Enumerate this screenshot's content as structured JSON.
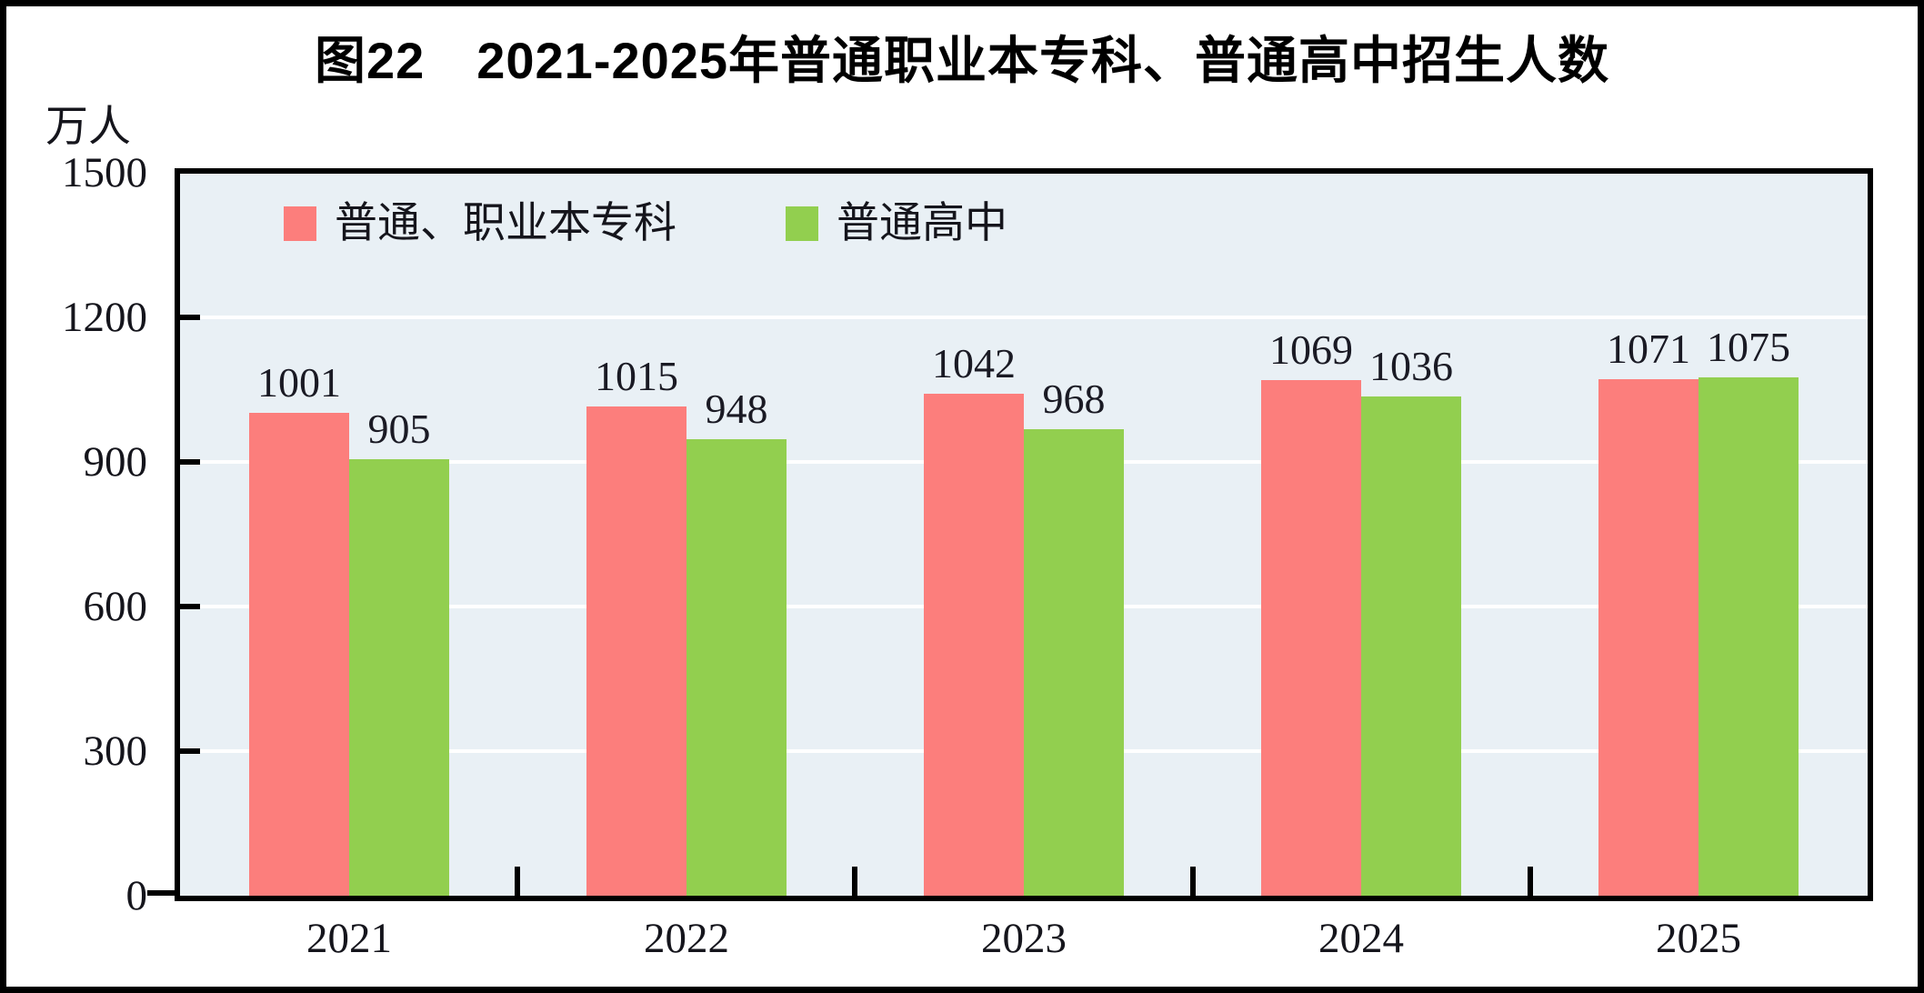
{
  "figure": {
    "title": "图22　2021-2025年普通职业本专科、普通高中招生人数",
    "unit_label": "万人"
  },
  "chart_data": {
    "type": "bar",
    "title": "图22　2021-2025年普通职业本专科、普通高中招生人数",
    "ylabel": "万人",
    "categories": [
      "2021",
      "2022",
      "2023",
      "2024",
      "2025"
    ],
    "series": [
      {
        "name": "普通、职业本专科",
        "color": "#FC7E7C",
        "values": [
          1001,
          1015,
          1042,
          1069,
          1071
        ]
      },
      {
        "name": "普通高中",
        "color": "#92CF4F",
        "values": [
          905,
          948,
          968,
          1036,
          1075
        ]
      }
    ],
    "ylim": [
      0,
      1500
    ],
    "yticks": [
      0,
      300,
      600,
      900,
      1200,
      1500
    ],
    "grid": true,
    "gridline_color": "#FFFFFF",
    "plot_background": "#E9F0F5",
    "legend_position": "top-left-inside",
    "value_labels": true
  }
}
